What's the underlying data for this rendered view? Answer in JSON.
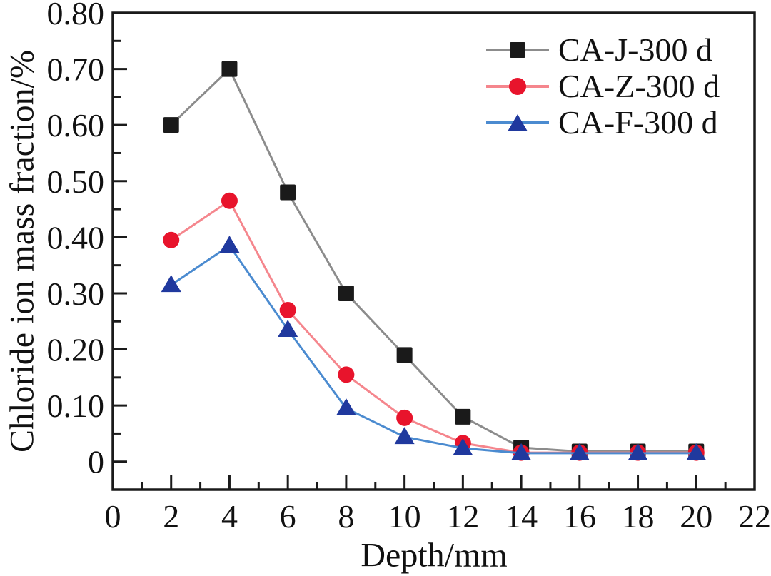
{
  "figure": {
    "background_color": "#ffffff",
    "frame_color": "#1a1a1a"
  },
  "chart_data": {
    "type": "line",
    "title": "",
    "xlabel": "Depth/mm",
    "ylabel": "Chloride ion mass fraction/%",
    "xlim": [
      0,
      22
    ],
    "ylim": [
      -0.05,
      0.8
    ],
    "grid": false,
    "legend_position": "top-right-inside",
    "x": [
      2,
      4,
      6,
      8,
      10,
      12,
      14,
      16,
      18,
      20
    ],
    "series": [
      {
        "name": "CA-J-300 d",
        "marker": "square",
        "marker_color": "#1a1a1a",
        "line_color": "#8c8c8c",
        "values": [
          0.6,
          0.7,
          0.48,
          0.3,
          0.19,
          0.08,
          0.025,
          0.018,
          0.018,
          0.018
        ]
      },
      {
        "name": "CA-Z-300 d",
        "marker": "circle",
        "marker_color": "#e8142c",
        "line_color": "#f5868d",
        "values": [
          0.395,
          0.465,
          0.27,
          0.155,
          0.078,
          0.033,
          0.016,
          0.016,
          0.016,
          0.016
        ]
      },
      {
        "name": "CA-F-300 d",
        "marker": "triangle",
        "marker_color": "#20399e",
        "line_color": "#4b8bd0",
        "values": [
          0.315,
          0.385,
          0.235,
          0.095,
          0.044,
          0.024,
          0.015,
          0.015,
          0.015,
          0.015
        ]
      }
    ],
    "x_axis": {
      "major_ticks": [
        0,
        2,
        4,
        6,
        8,
        10,
        12,
        14,
        16,
        18,
        20,
        22
      ],
      "minor_ticks": [
        1,
        3,
        5,
        7,
        9,
        11,
        13,
        15,
        17,
        19,
        21
      ],
      "tick_labels": [
        "0",
        "2",
        "4",
        "6",
        "8",
        "10",
        "12",
        "14",
        "16",
        "18",
        "20",
        "22"
      ]
    },
    "y_axis": {
      "major_ticks": [
        0,
        0.1,
        0.2,
        0.3,
        0.4,
        0.5,
        0.6,
        0.7,
        0.8
      ],
      "minor_ticks": [
        0.05,
        0.15,
        0.25,
        0.35,
        0.45,
        0.55,
        0.65,
        0.75
      ],
      "tick_labels": [
        "0",
        "0.10",
        "0.20",
        "0.30",
        "0.40",
        "0.50",
        "0.60",
        "0.70",
        "0.80"
      ]
    }
  }
}
